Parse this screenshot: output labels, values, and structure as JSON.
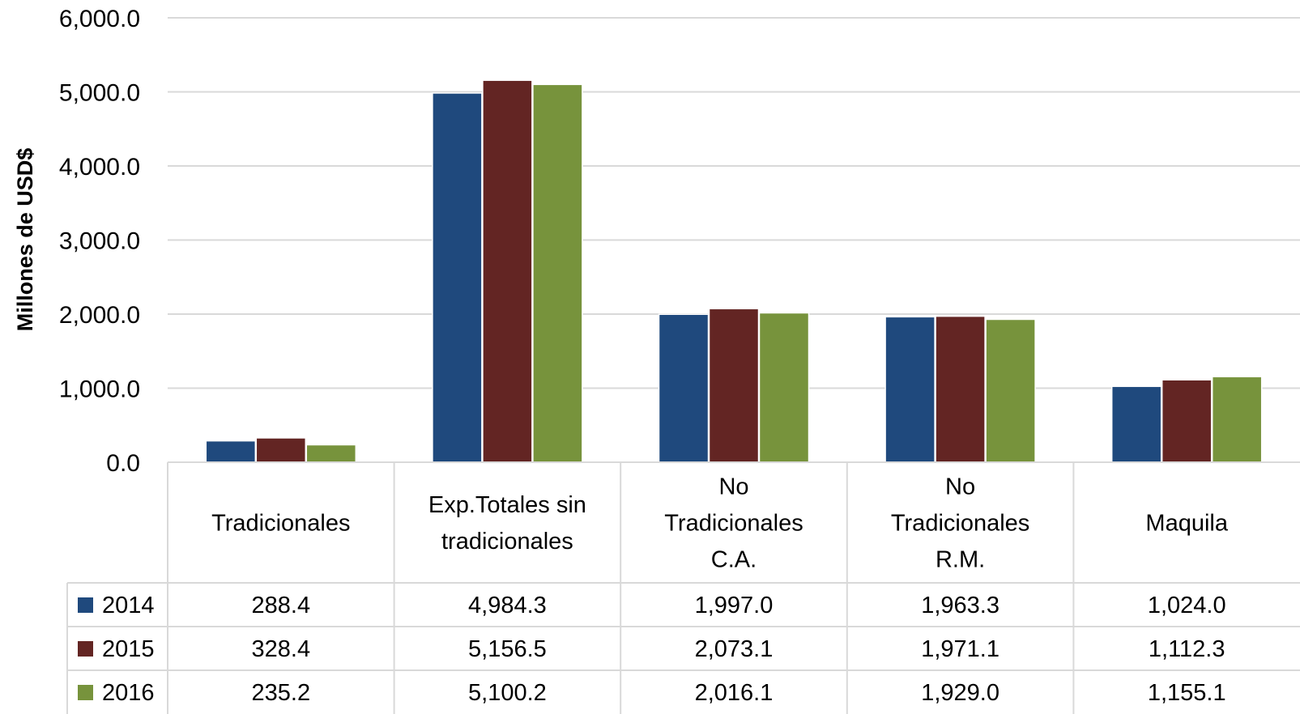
{
  "chart_data": {
    "type": "bar",
    "ylabel": "Millones de USD$",
    "ylim": [
      0,
      6000
    ],
    "yticks": [
      "0.0",
      "1,000.0",
      "2,000.0",
      "3,000.0",
      "4,000.0",
      "5,000.0",
      "6,000.0"
    ],
    "ytick_values": [
      0,
      1000,
      2000,
      3000,
      4000,
      5000,
      6000
    ],
    "grid": true,
    "legend": "data-table-left",
    "categories": [
      [
        "Tradicionales"
      ],
      [
        "Exp.Totales sin",
        "tradicionales"
      ],
      [
        "No",
        "Tradicionales",
        "C.A."
      ],
      [
        "No",
        "Tradicionales",
        "R.M."
      ],
      [
        "Maquila"
      ]
    ],
    "series": [
      {
        "name": "2014",
        "color": "#1f497d",
        "values": [
          288.4,
          4984.3,
          1997.0,
          1963.3,
          1024.0
        ],
        "labels": [
          "288.4",
          "4,984.3",
          "1,997.0",
          "1,963.3",
          "1,024.0"
        ]
      },
      {
        "name": "2015",
        "color": "#632523",
        "values": [
          328.4,
          5156.5,
          2073.1,
          1971.1,
          1112.3
        ],
        "labels": [
          "328.4",
          "5,156.5",
          "2,073.1",
          "1,971.1",
          "1,112.3"
        ]
      },
      {
        "name": "2016",
        "color": "#77933c",
        "values": [
          235.2,
          5100.2,
          2016.1,
          1929.0,
          1155.1
        ],
        "labels": [
          "235.2",
          "5,100.2",
          "2,016.1",
          "1,929.0",
          "1,155.1"
        ]
      }
    ]
  }
}
